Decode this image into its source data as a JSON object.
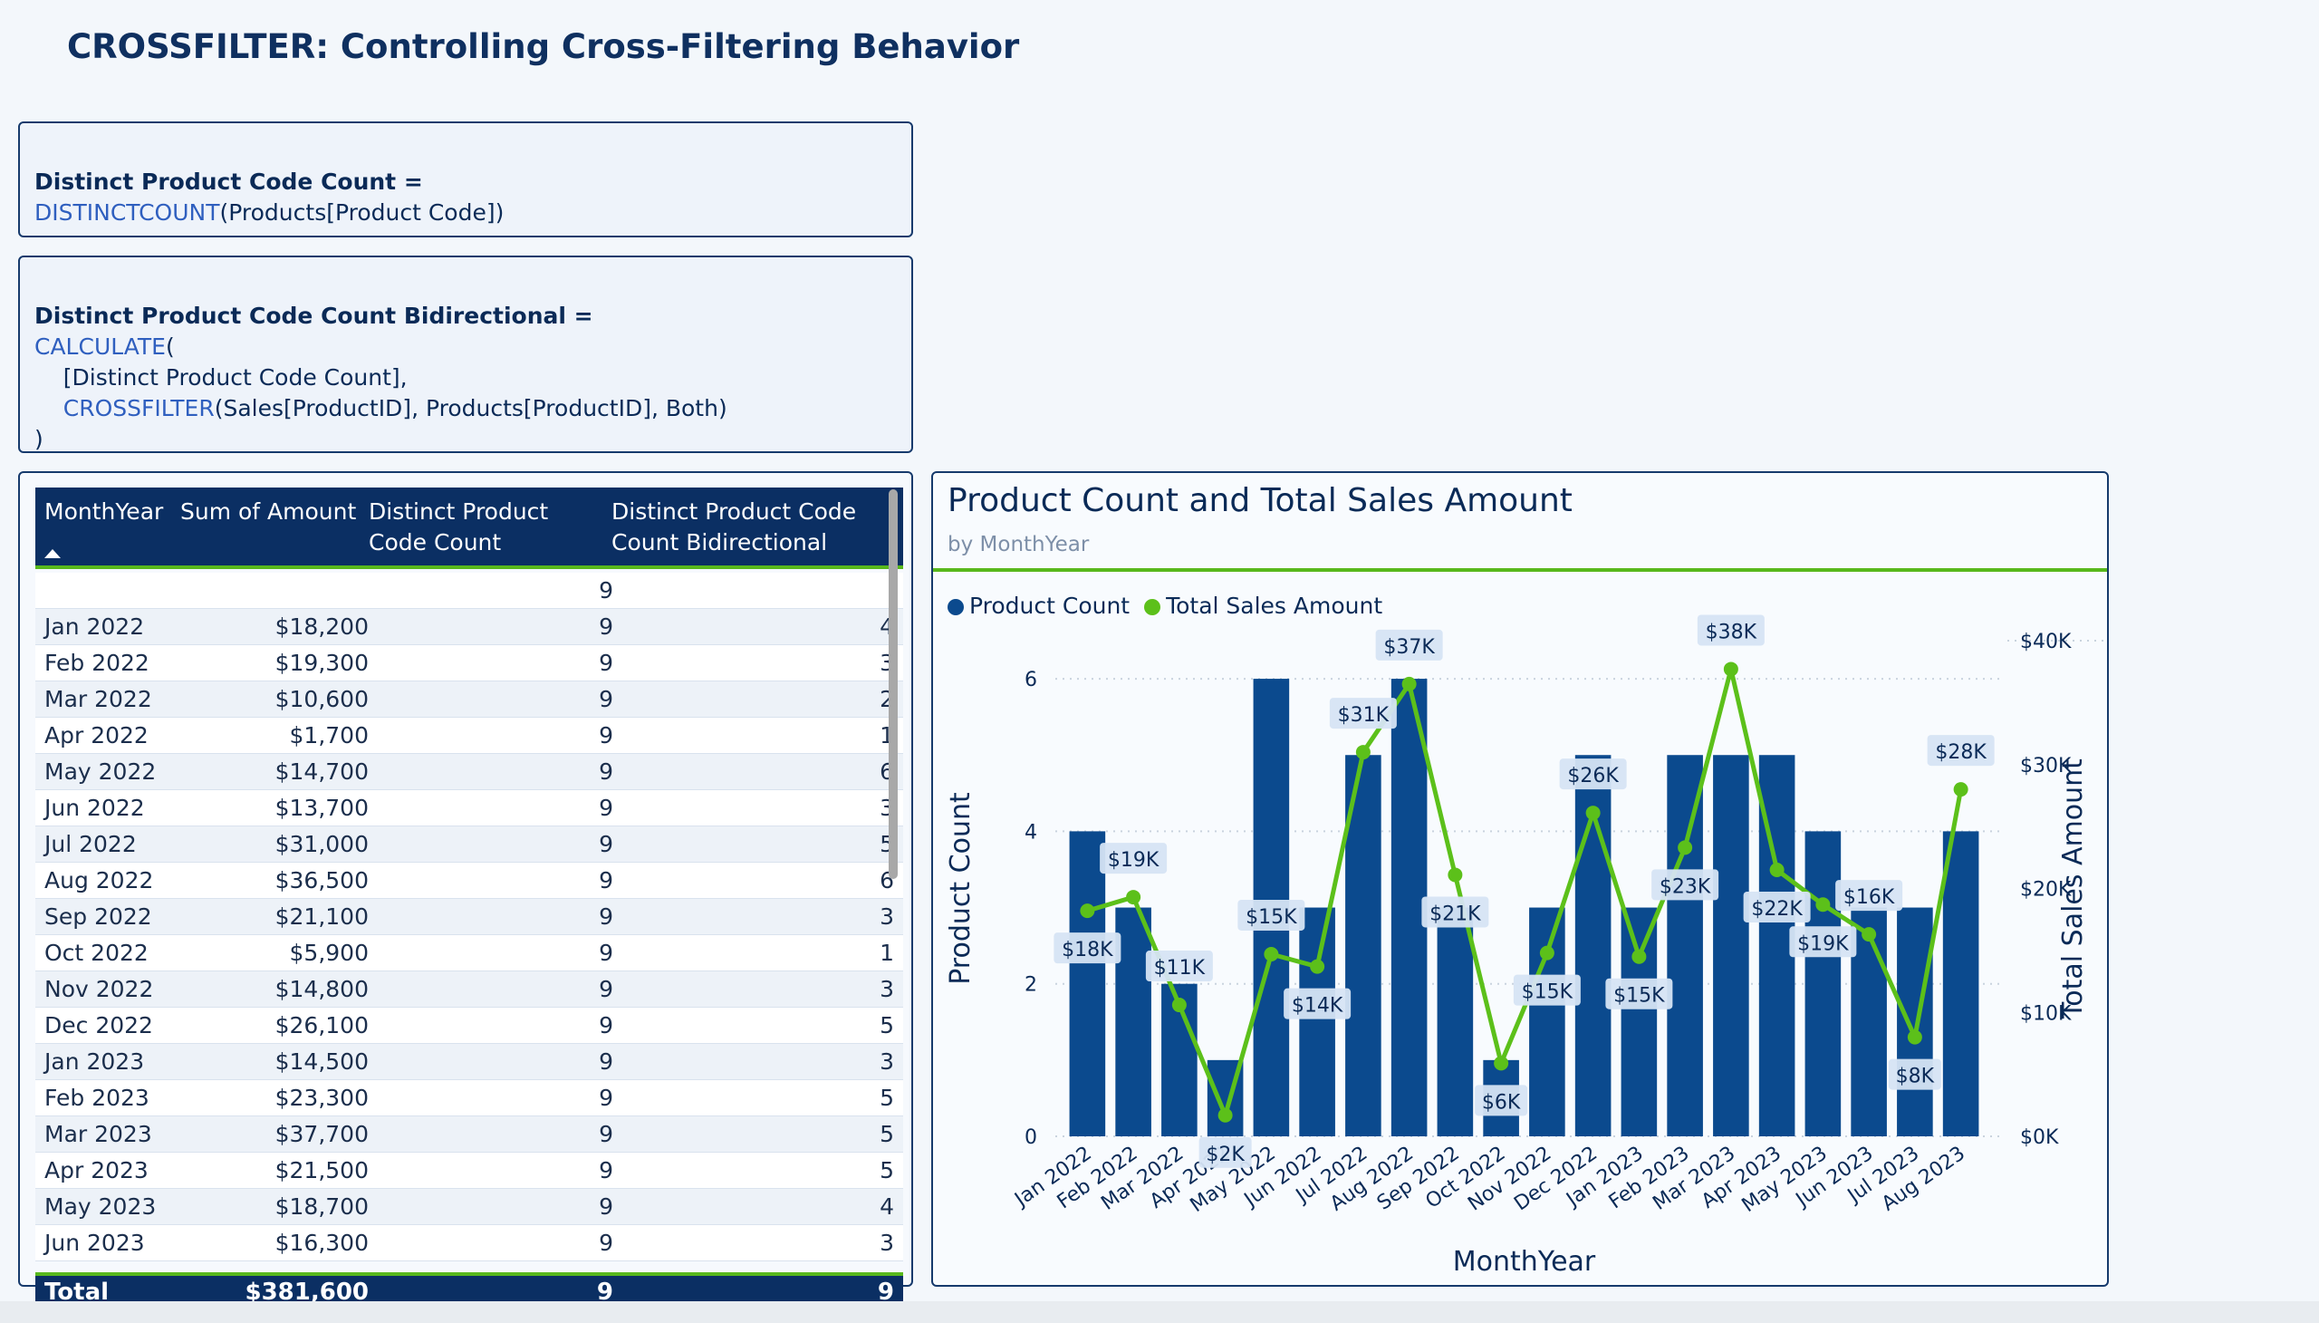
{
  "page": {
    "title": "CROSSFILTER: Controlling Cross-Filtering Behavior"
  },
  "measure1": {
    "head": "Distinct Product Code Count =",
    "fn": "DISTINCTCOUNT",
    "rest": "(Products[Product Code])"
  },
  "measure2": {
    "head": "Distinct Product Code Count Bidirectional =",
    "line1_fn": "CALCULATE",
    "line1_rest": "(",
    "line2": "    [Distinct Product Code Count],",
    "line3_indent": "    ",
    "line3_fn": "CROSSFILTER",
    "line3_rest": "(Sales[ProductID], Products[ProductID], Both)",
    "line4": ")"
  },
  "table": {
    "headers": [
      "MonthYear",
      "Sum of Amount",
      "Distinct Product Code Count",
      "Distinct Product Code Count Bidirectional"
    ],
    "rows": [
      [
        "",
        "",
        "9",
        ""
      ],
      [
        "Jan 2022",
        "$18,200",
        "9",
        "4"
      ],
      [
        "Feb 2022",
        "$19,300",
        "9",
        "3"
      ],
      [
        "Mar 2022",
        "$10,600",
        "9",
        "2"
      ],
      [
        "Apr 2022",
        "$1,700",
        "9",
        "1"
      ],
      [
        "May 2022",
        "$14,700",
        "9",
        "6"
      ],
      [
        "Jun 2022",
        "$13,700",
        "9",
        "3"
      ],
      [
        "Jul 2022",
        "$31,000",
        "9",
        "5"
      ],
      [
        "Aug 2022",
        "$36,500",
        "9",
        "6"
      ],
      [
        "Sep 2022",
        "$21,100",
        "9",
        "3"
      ],
      [
        "Oct 2022",
        "$5,900",
        "9",
        "1"
      ],
      [
        "Nov 2022",
        "$14,800",
        "9",
        "3"
      ],
      [
        "Dec 2022",
        "$26,100",
        "9",
        "5"
      ],
      [
        "Jan 2023",
        "$14,500",
        "9",
        "3"
      ],
      [
        "Feb 2023",
        "$23,300",
        "9",
        "5"
      ],
      [
        "Mar 2023",
        "$37,700",
        "9",
        "5"
      ],
      [
        "Apr 2023",
        "$21,500",
        "9",
        "5"
      ],
      [
        "May 2023",
        "$18,700",
        "9",
        "4"
      ],
      [
        "Jun 2023",
        "$16,300",
        "9",
        "3"
      ]
    ],
    "total": [
      "Total",
      "$381,600",
      "9",
      "9"
    ]
  },
  "chart_data": {
    "type": "bar",
    "title": "Product Count and Total Sales Amount",
    "subtitle": "by MonthYear",
    "xlabel": "MonthYear",
    "ylabel": "Product Count",
    "y2label": "Total Sales Amount",
    "ylim": [
      0,
      6.5
    ],
    "y2lim": [
      0,
      40000
    ],
    "yticks": [
      "0",
      "2",
      "4",
      "6"
    ],
    "y2ticks": [
      "$0K",
      "$10K",
      "$20K",
      "$30K",
      "$40K"
    ],
    "legend_position": "top-left",
    "categories": [
      "Jan 2022",
      "Feb 2022",
      "Mar 2022",
      "Apr 2022",
      "May 2022",
      "Jun 2022",
      "Jul 2022",
      "Aug 2022",
      "Sep 2022",
      "Oct 2022",
      "Nov 2022",
      "Dec 2022",
      "Jan 2023",
      "Feb 2023",
      "Mar 2023",
      "Apr 2023",
      "May 2023",
      "Jun 2023",
      "Jul 2023",
      "Aug 2023"
    ],
    "series": [
      {
        "name": "Product Count",
        "kind": "bar",
        "color": "#0b4a8e",
        "values": [
          4,
          3,
          2,
          1,
          6,
          3,
          5,
          6,
          3,
          1,
          3,
          5,
          3,
          5,
          5,
          5,
          4,
          3,
          3,
          4
        ]
      },
      {
        "name": "Total Sales Amount",
        "kind": "line",
        "color": "#5cc01a",
        "values": [
          18200,
          19300,
          10600,
          1700,
          14700,
          13700,
          31000,
          36500,
          21100,
          5900,
          14800,
          26100,
          14500,
          23300,
          37700,
          21500,
          18700,
          16300,
          8000,
          28000
        ],
        "labels": [
          "$18K",
          "$19K",
          "$11K",
          "$2K",
          "$15K",
          "$14K",
          "$31K",
          "$37K",
          "$21K",
          "$6K",
          "$15K",
          "$26K",
          "$15K",
          "$23K",
          "$38K",
          "$22K",
          "$19K",
          "$16K",
          "$8K",
          "$28K"
        ]
      }
    ]
  }
}
